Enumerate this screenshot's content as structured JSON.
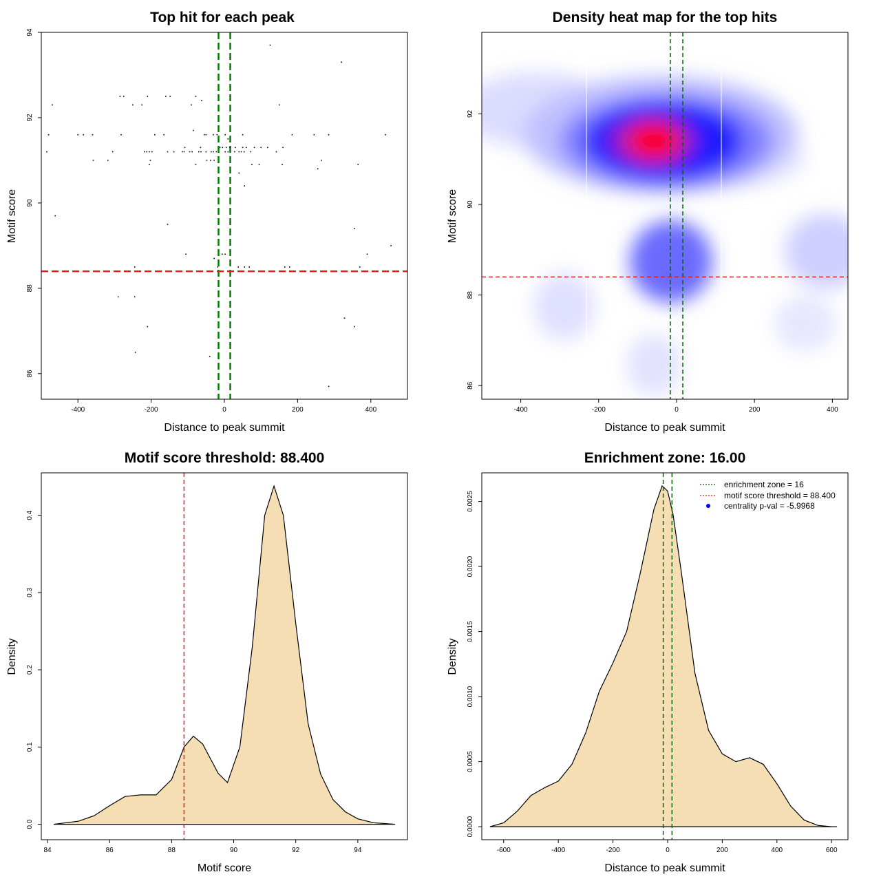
{
  "chart_data": [
    {
      "type": "scatter",
      "title": "Top hit for each peak",
      "xlabel": "Distance to peak summit",
      "ylabel": "Motif score",
      "xlim": [
        -500,
        500
      ],
      "ylim": [
        85.4,
        94
      ],
      "x_ticks": [
        -400,
        -200,
        0,
        200,
        400
      ],
      "y_ticks": [
        86,
        88,
        90,
        92,
        94
      ],
      "vlines": [
        {
          "x": -16,
          "color": "#008000",
          "style": "dashed"
        },
        {
          "x": 16,
          "color": "#008000",
          "style": "dashed"
        }
      ],
      "hlines": [
        {
          "y": 88.4,
          "color": "#dd2222",
          "style": "dashed"
        }
      ],
      "points": [
        [
          125,
          93.7
        ],
        [
          320,
          93.3
        ],
        [
          -470,
          92.3
        ],
        [
          -285,
          92.5
        ],
        [
          -275,
          92.5
        ],
        [
          -210,
          92.5
        ],
        [
          -160,
          92.5
        ],
        [
          -148,
          92.5
        ],
        [
          -78,
          92.5
        ],
        [
          -62,
          92.4
        ],
        [
          -250,
          92.3
        ],
        [
          -225,
          92.3
        ],
        [
          -90,
          92.3
        ],
        [
          150,
          92.3
        ],
        [
          -85,
          91.7
        ],
        [
          -480,
          91.6
        ],
        [
          -400,
          91.6
        ],
        [
          -385,
          91.6
        ],
        [
          -360,
          91.6
        ],
        [
          -282,
          91.6
        ],
        [
          -190,
          91.6
        ],
        [
          -165,
          91.6
        ],
        [
          -55,
          91.6
        ],
        [
          -50,
          91.6
        ],
        [
          -30,
          91.6
        ],
        [
          -20,
          91.6
        ],
        [
          2,
          91.6
        ],
        [
          10,
          91.5
        ],
        [
          50,
          91.6
        ],
        [
          185,
          91.6
        ],
        [
          245,
          91.6
        ],
        [
          285,
          91.6
        ],
        [
          440,
          91.6
        ],
        [
          -485,
          91.2
        ],
        [
          -305,
          91.2
        ],
        [
          -218,
          91.2
        ],
        [
          -212,
          91.2
        ],
        [
          -205,
          91.2
        ],
        [
          -198,
          91.2
        ],
        [
          -155,
          91.2
        ],
        [
          -138,
          91.2
        ],
        [
          -115,
          91.2
        ],
        [
          -110,
          91.2
        ],
        [
          -95,
          91.2
        ],
        [
          -88,
          91.2
        ],
        [
          -70,
          91.2
        ],
        [
          -64,
          91.2
        ],
        [
          -50,
          91.2
        ],
        [
          -36,
          91.2
        ],
        [
          -30,
          91.2
        ],
        [
          -22,
          91.2
        ],
        [
          -108,
          91.3
        ],
        [
          -65,
          91.3
        ],
        [
          -12,
          91.3
        ],
        [
          -5,
          91.3
        ],
        [
          5,
          91.3
        ],
        [
          15,
          91.3
        ],
        [
          30,
          91.3
        ],
        [
          50,
          91.3
        ],
        [
          60,
          91.3
        ],
        [
          82,
          91.3
        ],
        [
          100,
          91.3
        ],
        [
          118,
          91.3
        ],
        [
          160,
          91.3
        ],
        [
          2,
          91.2
        ],
        [
          10,
          91.2
        ],
        [
          28,
          91.2
        ],
        [
          40,
          91.2
        ],
        [
          46,
          91.2
        ],
        [
          54,
          91.2
        ],
        [
          72,
          91.2
        ],
        [
          142,
          91.2
        ],
        [
          -358,
          91.0
        ],
        [
          -318,
          91.0
        ],
        [
          -202,
          91.0
        ],
        [
          -48,
          91.0
        ],
        [
          -38,
          91.0
        ],
        [
          -28,
          91.0
        ],
        [
          -205,
          90.9
        ],
        [
          -78,
          90.9
        ],
        [
          75,
          90.9
        ],
        [
          95,
          90.9
        ],
        [
          158,
          90.9
        ],
        [
          265,
          91.0
        ],
        [
          365,
          90.9
        ],
        [
          255,
          90.8
        ],
        [
          40,
          90.7
        ],
        [
          55,
          90.4
        ],
        [
          -462,
          89.7
        ],
        [
          -155,
          89.5
        ],
        [
          355,
          89.4
        ],
        [
          -105,
          88.8
        ],
        [
          -6,
          88.8
        ],
        [
          2,
          88.8
        ],
        [
          390,
          88.8
        ],
        [
          455,
          89.0
        ],
        [
          -28,
          88.7
        ],
        [
          -245,
          88.5
        ],
        [
          -18,
          88.5
        ],
        [
          38,
          88.5
        ],
        [
          55,
          88.5
        ],
        [
          68,
          88.5
        ],
        [
          165,
          88.5
        ],
        [
          178,
          88.5
        ],
        [
          370,
          88.5
        ],
        [
          -290,
          87.8
        ],
        [
          -245,
          87.8
        ],
        [
          -210,
          87.1
        ],
        [
          328,
          87.3
        ],
        [
          355,
          87.1
        ],
        [
          -243,
          86.5
        ],
        [
          -40,
          86.4
        ],
        [
          285,
          85.7
        ]
      ]
    },
    {
      "type": "heatmap",
      "title": "Density heat map for the top hits",
      "xlabel": "Distance to peak summit",
      "ylabel": "Motif score",
      "xlim": [
        -500,
        440
      ],
      "ylim": [
        85.7,
        93.8
      ],
      "x_ticks": [
        -400,
        -200,
        0,
        200,
        400
      ],
      "y_ticks": [
        86,
        88,
        90,
        92
      ],
      "colors": [
        "#ffffff",
        "#0000ff",
        "#ff0000"
      ],
      "vlines": [
        {
          "x": -16,
          "color": "#006400",
          "style": "dashed"
        },
        {
          "x": 16,
          "color": "#006400",
          "style": "dashed"
        }
      ],
      "hlines": [
        {
          "y": 88.4,
          "color": "#dd2222",
          "style": "dashed"
        }
      ]
    },
    {
      "type": "area",
      "title": "Motif score threshold: 88.400",
      "xlabel": "Motif score",
      "ylabel": "Density",
      "xlim": [
        83.8,
        95.6
      ],
      "ylim": [
        -0.02,
        0.455
      ],
      "x_ticks": [
        84,
        86,
        88,
        90,
        92,
        94
      ],
      "y_ticks": [
        0.0,
        0.1,
        0.2,
        0.3,
        0.4
      ],
      "y_tick_labels": [
        "0.0",
        "0.1",
        "0.2",
        "0.3",
        "0.4"
      ],
      "fill": "#f5deb3",
      "vlines": [
        {
          "x": 88.4,
          "color": "#dd2222",
          "style": "dashed"
        }
      ],
      "x": [
        84.2,
        85.0,
        85.5,
        86.0,
        86.5,
        87.0,
        87.5,
        88.0,
        88.4,
        88.7,
        89.0,
        89.5,
        89.8,
        90.2,
        90.6,
        91.0,
        91.3,
        91.6,
        92.0,
        92.4,
        92.8,
        93.2,
        93.6,
        94.0,
        94.5,
        95.2
      ],
      "y": [
        0.0,
        0.004,
        0.011,
        0.024,
        0.036,
        0.038,
        0.038,
        0.058,
        0.1,
        0.114,
        0.104,
        0.066,
        0.054,
        0.1,
        0.23,
        0.4,
        0.438,
        0.4,
        0.26,
        0.13,
        0.065,
        0.032,
        0.016,
        0.007,
        0.002,
        0.0
      ]
    },
    {
      "type": "area",
      "title": "Enrichment zone: 16.00",
      "xlabel": "Distance to peak summit",
      "ylabel": "Density",
      "xlim": [
        -680,
        660
      ],
      "ylim": [
        -0.0001,
        0.00272
      ],
      "x_ticks": [
        -600,
        -400,
        -200,
        0,
        200,
        400,
        600
      ],
      "y_ticks": [
        0.0,
        0.0005,
        0.001,
        0.0015,
        0.002,
        0.0025
      ],
      "y_tick_labels": [
        "0.0000",
        "0.0005",
        "0.0010",
        "0.0015",
        "0.0020",
        "0.0025"
      ],
      "fill": "#f5deb3",
      "vlines": [
        {
          "x": -16,
          "color": "#006400",
          "style": "dashed"
        },
        {
          "x": 16,
          "color": "#006400",
          "style": "dashed"
        }
      ],
      "x": [
        -650,
        -600,
        -550,
        -500,
        -450,
        -400,
        -350,
        -300,
        -250,
        -200,
        -150,
        -100,
        -50,
        -20,
        0,
        20,
        50,
        100,
        150,
        200,
        250,
        300,
        350,
        400,
        450,
        500,
        550,
        600,
        620
      ],
      "y": [
        0.0,
        3e-05,
        0.00012,
        0.00024,
        0.0003,
        0.00035,
        0.00048,
        0.00072,
        0.00104,
        0.00126,
        0.0015,
        0.00195,
        0.00244,
        0.00262,
        0.00258,
        0.0024,
        0.00196,
        0.00118,
        0.00074,
        0.00056,
        0.0005,
        0.00053,
        0.00048,
        0.00033,
        0.00016,
        5e-05,
        1e-05,
        0.0,
        0.0
      ],
      "legend": {
        "position": "top-right",
        "entries": [
          {
            "label": "enrichment zone = 16",
            "color": "#006400",
            "marker": "dotted-line"
          },
          {
            "label": "motif score threshold = 88.400",
            "color": "#dd2222",
            "marker": "dotted-line"
          },
          {
            "label": "centrality p-val = -5.9968",
            "color": "#0000ff",
            "marker": "dot"
          }
        ]
      }
    }
  ]
}
